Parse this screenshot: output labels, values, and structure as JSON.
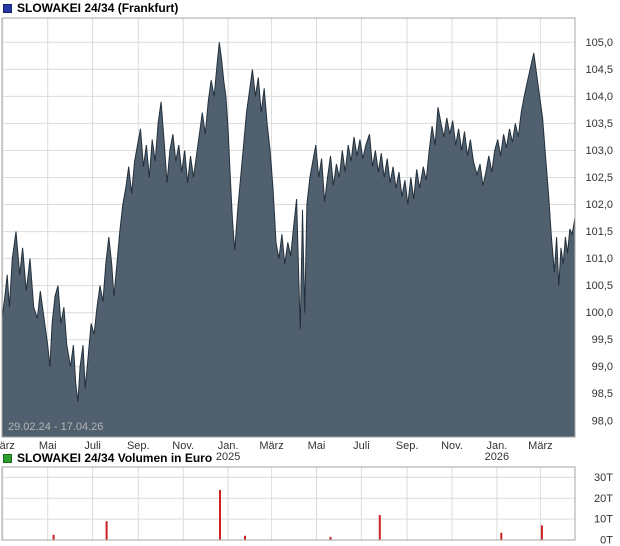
{
  "style": {
    "grid_color": "#dcdcdc",
    "border_color": "#a6a6a6",
    "tick_color": "#333333",
    "date_color": "#b4b4b4",
    "background": "#ffffff"
  },
  "chart_data": [
    {
      "type": "area",
      "title": "SLOWAKEI 24/34 (Frankfurt)",
      "legend_color": "#2438a8",
      "date_range": "29.02.24 - 17.04.26",
      "area_fill": "#50606e",
      "line_color": "#23313c",
      "x_unit": "days since 29.02.2024",
      "xlim": [
        0,
        778
      ],
      "ylim": [
        97.7,
        105.45
      ],
      "yticks": [
        {
          "v": 105.0,
          "label": "105,0"
        },
        {
          "v": 104.5,
          "label": "104,5"
        },
        {
          "v": 104.0,
          "label": "104,0"
        },
        {
          "v": 103.5,
          "label": "103,5"
        },
        {
          "v": 103.0,
          "label": "103,0"
        },
        {
          "v": 102.5,
          "label": "102,5"
        },
        {
          "v": 102.0,
          "label": "102,0"
        },
        {
          "v": 101.5,
          "label": "101,5"
        },
        {
          "v": 101.0,
          "label": "101,0"
        },
        {
          "v": 100.5,
          "label": "100,5"
        },
        {
          "v": 100.0,
          "label": "100,0"
        },
        {
          "v": 99.5,
          "label": "99,5"
        },
        {
          "v": 99.0,
          "label": "99,0"
        },
        {
          "v": 98.5,
          "label": "98,5"
        },
        {
          "v": 98.0,
          "label": "98,0"
        }
      ],
      "xticks": [
        {
          "d": 1,
          "label": "März"
        },
        {
          "d": 62,
          "label": "Mai"
        },
        {
          "d": 123,
          "label": "Juli"
        },
        {
          "d": 185,
          "label": "Sep."
        },
        {
          "d": 246,
          "label": "Nov."
        },
        {
          "d": 307,
          "label": "Jan.",
          "sub": "2025"
        },
        {
          "d": 366,
          "label": "März"
        },
        {
          "d": 427,
          "label": "Mai"
        },
        {
          "d": 488,
          "label": "Juli"
        },
        {
          "d": 550,
          "label": "Sep."
        },
        {
          "d": 611,
          "label": "Nov."
        },
        {
          "d": 672,
          "label": "Jan.",
          "sub": "2026"
        },
        {
          "d": 731,
          "label": "März"
        }
      ],
      "points": [
        [
          0,
          99.9
        ],
        [
          4,
          100.3
        ],
        [
          7,
          100.7
        ],
        [
          10,
          100.1
        ],
        [
          14,
          101.0
        ],
        [
          19,
          101.5
        ],
        [
          24,
          100.7
        ],
        [
          28,
          101.2
        ],
        [
          33,
          100.4
        ],
        [
          38,
          101.0
        ],
        [
          43,
          100.1
        ],
        [
          48,
          99.9
        ],
        [
          52,
          100.4
        ],
        [
          57,
          99.9
        ],
        [
          62,
          99.4
        ],
        [
          65,
          99.0
        ],
        [
          68,
          99.8
        ],
        [
          72,
          100.3
        ],
        [
          76,
          100.5
        ],
        [
          80,
          99.8
        ],
        [
          84,
          100.1
        ],
        [
          88,
          99.4
        ],
        [
          93,
          99.0
        ],
        [
          97,
          99.4
        ],
        [
          100,
          98.7
        ],
        [
          103,
          98.35
        ],
        [
          106,
          99.0
        ],
        [
          110,
          99.4
        ],
        [
          113,
          98.6
        ],
        [
          117,
          99.2
        ],
        [
          121,
          99.8
        ],
        [
          125,
          99.6
        ],
        [
          129,
          100.1
        ],
        [
          133,
          100.5
        ],
        [
          137,
          100.2
        ],
        [
          141,
          100.9
        ],
        [
          145,
          101.4
        ],
        [
          149,
          100.9
        ],
        [
          152,
          100.3
        ],
        [
          156,
          100.9
        ],
        [
          160,
          101.5
        ],
        [
          164,
          102.0
        ],
        [
          168,
          102.3
        ],
        [
          172,
          102.7
        ],
        [
          176,
          102.2
        ],
        [
          180,
          102.8
        ],
        [
          184,
          103.1
        ],
        [
          188,
          103.4
        ],
        [
          192,
          102.7
        ],
        [
          196,
          103.1
        ],
        [
          200,
          102.5
        ],
        [
          204,
          103.2
        ],
        [
          208,
          102.8
        ],
        [
          212,
          103.5
        ],
        [
          216,
          103.9
        ],
        [
          220,
          103.2
        ],
        [
          224,
          102.4
        ],
        [
          228,
          103.0
        ],
        [
          232,
          103.3
        ],
        [
          236,
          102.8
        ],
        [
          240,
          103.1
        ],
        [
          244,
          102.6
        ],
        [
          248,
          103.0
        ],
        [
          252,
          102.4
        ],
        [
          256,
          102.9
        ],
        [
          260,
          102.5
        ],
        [
          264,
          102.9
        ],
        [
          268,
          103.3
        ],
        [
          272,
          103.7
        ],
        [
          276,
          103.3
        ],
        [
          280,
          103.9
        ],
        [
          284,
          104.3
        ],
        [
          288,
          104.0
        ],
        [
          292,
          104.6
        ],
        [
          295,
          105.0
        ],
        [
          298,
          104.7
        ],
        [
          301,
          104.3
        ],
        [
          304,
          104.0
        ],
        [
          307,
          103.4
        ],
        [
          310,
          102.5
        ],
        [
          313,
          101.7
        ],
        [
          316,
          101.15
        ],
        [
          320,
          101.9
        ],
        [
          324,
          102.5
        ],
        [
          328,
          103.1
        ],
        [
          332,
          103.7
        ],
        [
          336,
          104.1
        ],
        [
          340,
          104.5
        ],
        [
          344,
          104.0
        ],
        [
          348,
          104.35
        ],
        [
          352,
          103.7
        ],
        [
          356,
          104.15
        ],
        [
          360,
          103.5
        ],
        [
          364,
          103.0
        ],
        [
          368,
          102.3
        ],
        [
          372,
          101.3
        ],
        [
          376,
          101.0
        ],
        [
          380,
          101.45
        ],
        [
          384,
          100.9
        ],
        [
          388,
          101.3
        ],
        [
          392,
          101.05
        ],
        [
          396,
          101.6
        ],
        [
          400,
          102.1
        ],
        [
          403,
          100.6
        ],
        [
          405,
          99.7
        ],
        [
          408,
          101.9
        ],
        [
          411,
          100.0
        ],
        [
          414,
          102.0
        ],
        [
          418,
          102.5
        ],
        [
          422,
          102.8
        ],
        [
          426,
          103.1
        ],
        [
          430,
          102.5
        ],
        [
          434,
          102.85
        ],
        [
          438,
          102.05
        ],
        [
          442,
          102.5
        ],
        [
          446,
          102.9
        ],
        [
          450,
          102.35
        ],
        [
          454,
          102.75
        ],
        [
          458,
          102.5
        ],
        [
          462,
          103.0
        ],
        [
          466,
          102.6
        ],
        [
          470,
          103.1
        ],
        [
          474,
          102.8
        ],
        [
          478,
          103.25
        ],
        [
          482,
          102.9
        ],
        [
          486,
          103.2
        ],
        [
          490,
          102.85
        ],
        [
          494,
          103.1
        ],
        [
          499,
          103.3
        ],
        [
          503,
          102.7
        ],
        [
          507,
          103.0
        ],
        [
          511,
          102.6
        ],
        [
          515,
          102.95
        ],
        [
          519,
          102.5
        ],
        [
          523,
          102.85
        ],
        [
          527,
          102.4
        ],
        [
          531,
          102.7
        ],
        [
          535,
          102.3
        ],
        [
          539,
          102.6
        ],
        [
          543,
          102.15
        ],
        [
          547,
          102.45
        ],
        [
          551,
          102.0
        ],
        [
          555,
          102.5
        ],
        [
          559,
          102.1
        ],
        [
          563,
          102.65
        ],
        [
          567,
          102.3
        ],
        [
          572,
          102.7
        ],
        [
          576,
          102.45
        ],
        [
          580,
          103.0
        ],
        [
          584,
          103.45
        ],
        [
          588,
          103.1
        ],
        [
          592,
          103.8
        ],
        [
          596,
          103.5
        ],
        [
          600,
          103.25
        ],
        [
          604,
          103.6
        ],
        [
          608,
          103.3
        ],
        [
          612,
          103.55
        ],
        [
          616,
          103.1
        ],
        [
          620,
          103.4
        ],
        [
          624,
          103.0
        ],
        [
          628,
          103.35
        ],
        [
          632,
          102.9
        ],
        [
          636,
          103.2
        ],
        [
          640,
          102.8
        ],
        [
          645,
          102.55
        ],
        [
          649,
          102.75
        ],
        [
          653,
          102.35
        ],
        [
          657,
          102.6
        ],
        [
          661,
          102.9
        ],
        [
          665,
          102.6
        ],
        [
          669,
          103.0
        ],
        [
          673,
          103.2
        ],
        [
          677,
          102.9
        ],
        [
          681,
          103.3
        ],
        [
          685,
          103.05
        ],
        [
          689,
          103.4
        ],
        [
          693,
          103.15
        ],
        [
          697,
          103.5
        ],
        [
          701,
          103.25
        ],
        [
          705,
          103.7
        ],
        [
          709,
          104.0
        ],
        [
          713,
          104.25
        ],
        [
          717,
          104.5
        ],
        [
          722,
          104.8
        ],
        [
          726,
          104.4
        ],
        [
          730,
          104.0
        ],
        [
          734,
          103.6
        ],
        [
          738,
          102.9
        ],
        [
          742,
          102.2
        ],
        [
          746,
          101.4
        ],
        [
          750,
          100.75
        ],
        [
          753,
          101.4
        ],
        [
          756,
          100.5
        ],
        [
          759,
          101.2
        ],
        [
          762,
          100.9
        ],
        [
          765,
          101.4
        ],
        [
          768,
          101.1
        ],
        [
          771,
          101.55
        ],
        [
          774,
          101.45
        ],
        [
          778,
          101.75
        ]
      ]
    },
    {
      "type": "bar",
      "title": "SLOWAKEI 24/34 Volumen in Euro",
      "legend_color": "#2ca02c",
      "bar_color": "#cc2222",
      "x_unit": "days since 29.02.2024",
      "xlim": [
        0,
        778
      ],
      "ylim": [
        0,
        35000
      ],
      "yticks": [
        {
          "v": 30000,
          "label": "30T"
        },
        {
          "v": 20000,
          "label": "20T"
        },
        {
          "v": 10000,
          "label": "10T"
        },
        {
          "v": 0,
          "label": "0T"
        }
      ],
      "xticks": [
        {
          "d": 1
        },
        {
          "d": 62
        },
        {
          "d": 123
        },
        {
          "d": 185
        },
        {
          "d": 246
        },
        {
          "d": 307
        },
        {
          "d": 366
        },
        {
          "d": 427
        },
        {
          "d": 488
        },
        {
          "d": 550
        },
        {
          "d": 611
        },
        {
          "d": 672
        },
        {
          "d": 731
        }
      ],
      "bars": [
        [
          70,
          2500
        ],
        [
          142,
          9000
        ],
        [
          296,
          24000
        ],
        [
          330,
          2000
        ],
        [
          446,
          1500
        ],
        [
          513,
          12000
        ],
        [
          678,
          3500
        ],
        [
          733,
          7000
        ]
      ]
    }
  ]
}
